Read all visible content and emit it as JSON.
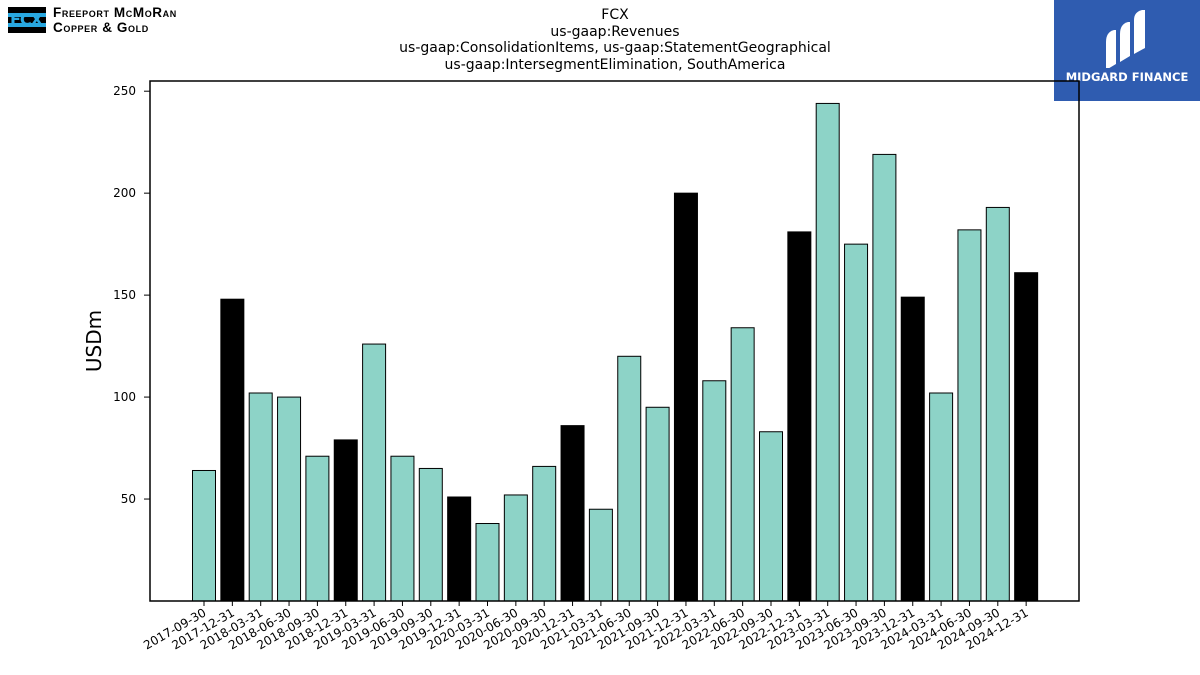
{
  "logo_left": {
    "line1": "Freeport McMoRan",
    "line2": "Copper & Gold",
    "mark": "FCX"
  },
  "logo_right": {
    "text": "MIDGARD FINANCE",
    "icon": "midgard-mark-icon"
  },
  "colors": {
    "highlight": "#000000",
    "bar": "#8dd3c7",
    "frame": "#000000",
    "logo_bg": "#2f5cb0"
  },
  "chart_data": {
    "type": "bar",
    "title": "FCX",
    "subtitle_lines": [
      "us-gaap:Revenues",
      "us-gaap:ConsolidationItems, us-gaap:StatementGeographical",
      "us-gaap:IntersegmentElimination, SouthAmerica"
    ],
    "xlabel": "",
    "ylabel": "USDm",
    "ylim": [
      0,
      255
    ],
    "yticks": [
      50,
      100,
      150,
      200,
      250
    ],
    "grid": false,
    "categories": [
      "2017-09-30",
      "2017-12-31",
      "2018-03-31",
      "2018-06-30",
      "2018-09-30",
      "2018-12-31",
      "2019-03-31",
      "2019-06-30",
      "2019-09-30",
      "2019-12-31",
      "2020-03-31",
      "2020-06-30",
      "2020-09-30",
      "2020-12-31",
      "2021-03-31",
      "2021-06-30",
      "2021-09-30",
      "2021-12-31",
      "2022-03-31",
      "2022-06-30",
      "2022-09-30",
      "2022-12-31",
      "2023-03-31",
      "2023-06-30",
      "2023-09-30",
      "2023-12-31",
      "2024-03-31",
      "2024-06-30",
      "2024-09-30",
      "2024-12-31"
    ],
    "values": [
      64,
      148,
      102,
      100,
      71,
      79,
      126,
      71,
      65,
      51,
      38,
      52,
      66,
      86,
      45,
      120,
      95,
      200,
      108,
      134,
      83,
      181,
      244,
      175,
      219,
      149,
      102,
      182,
      193,
      161
    ],
    "highlight_year_end": true
  }
}
